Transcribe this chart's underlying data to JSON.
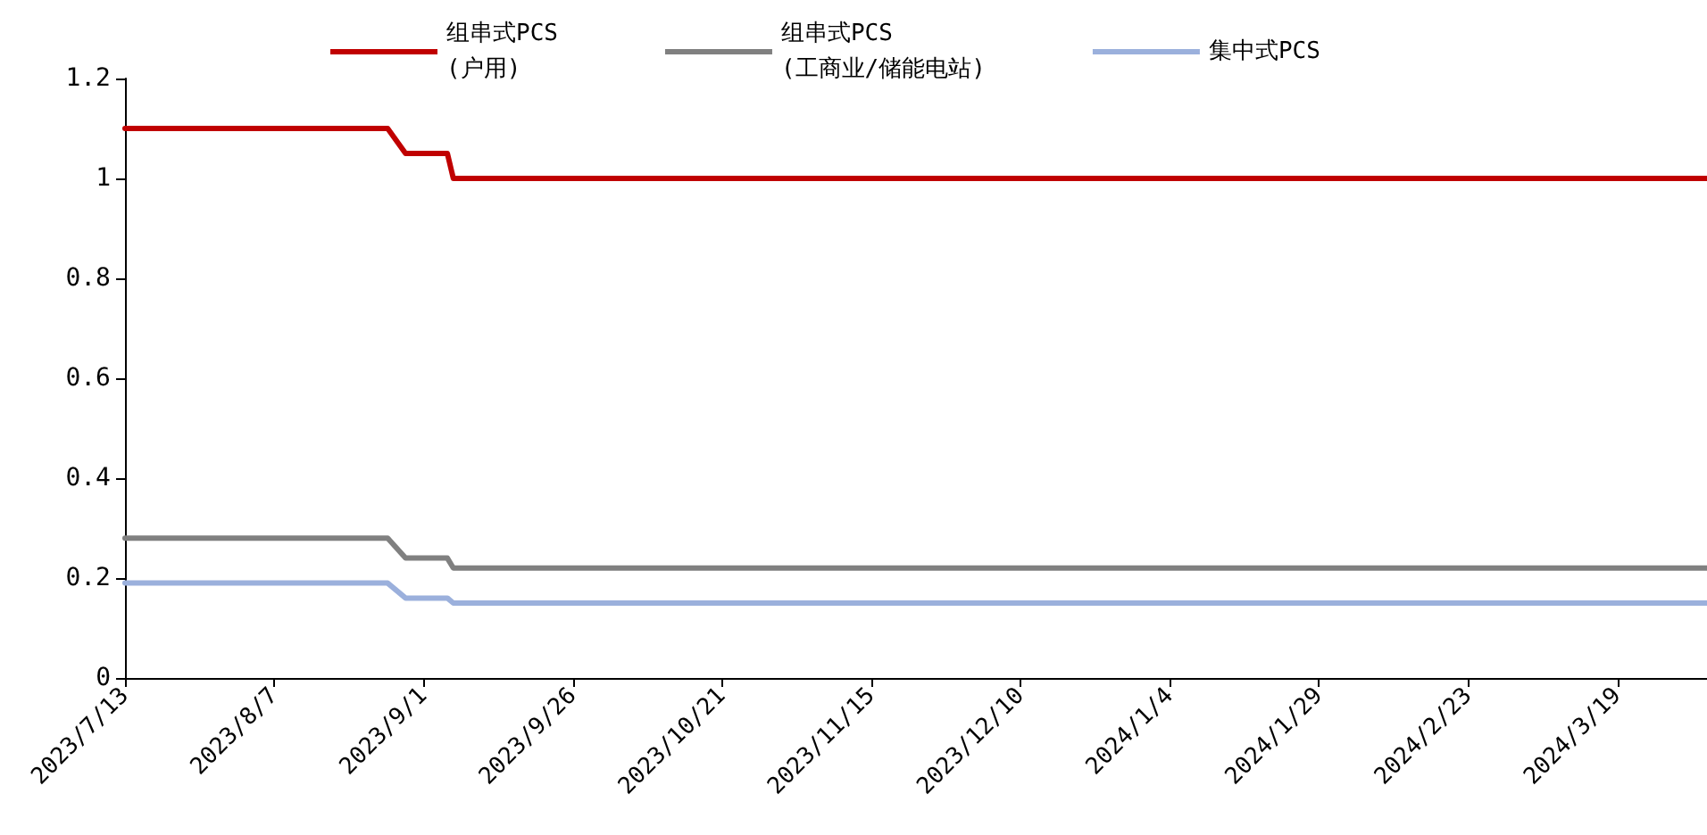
{
  "chart_data": {
    "type": "line",
    "x": [
      "2023-07-13",
      "2023-08-26",
      "2023-08-29",
      "2023-09-05",
      "2023-09-06",
      "2024-04-03"
    ],
    "series": [
      {
        "name": "组串式PCS\n(户用)",
        "color": "#c00000",
        "values": [
          1.1,
          1.1,
          1.05,
          1.05,
          1.0,
          1.0
        ]
      },
      {
        "name": "组串式PCS\n(工商业/储能电站)",
        "color": "#808080",
        "values": [
          0.28,
          0.28,
          0.24,
          0.24,
          0.22,
          0.22
        ]
      },
      {
        "name": "集中式PCS",
        "color": "#9bb0dc",
        "values": [
          0.19,
          0.19,
          0.16,
          0.16,
          0.15,
          0.15
        ]
      }
    ],
    "xlim": [
      "2023-07-13",
      "2024-04-03"
    ],
    "xticks": [
      {
        "value": "2023-07-13",
        "label": "2023/7/13"
      },
      {
        "value": "2023-08-07",
        "label": "2023/8/7"
      },
      {
        "value": "2023-09-01",
        "label": "2023/9/1"
      },
      {
        "value": "2023-09-26",
        "label": "2023/9/26"
      },
      {
        "value": "2023-10-21",
        "label": "2023/10/21"
      },
      {
        "value": "2023-11-15",
        "label": "2023/11/15"
      },
      {
        "value": "2023-12-10",
        "label": "2023/12/10"
      },
      {
        "value": "2024-01-04",
        "label": "2024/1/4"
      },
      {
        "value": "2024-01-29",
        "label": "2024/1/29"
      },
      {
        "value": "2024-02-23",
        "label": "2024/2/23"
      },
      {
        "value": "2024-03-19",
        "label": "2024/3/19"
      }
    ],
    "ylim": [
      0,
      1.2
    ],
    "yticks": [
      0,
      0.2,
      0.4,
      0.6,
      0.8,
      1,
      1.2
    ],
    "grid": false,
    "legend": "top",
    "marker": "none",
    "line_style": "solid"
  }
}
